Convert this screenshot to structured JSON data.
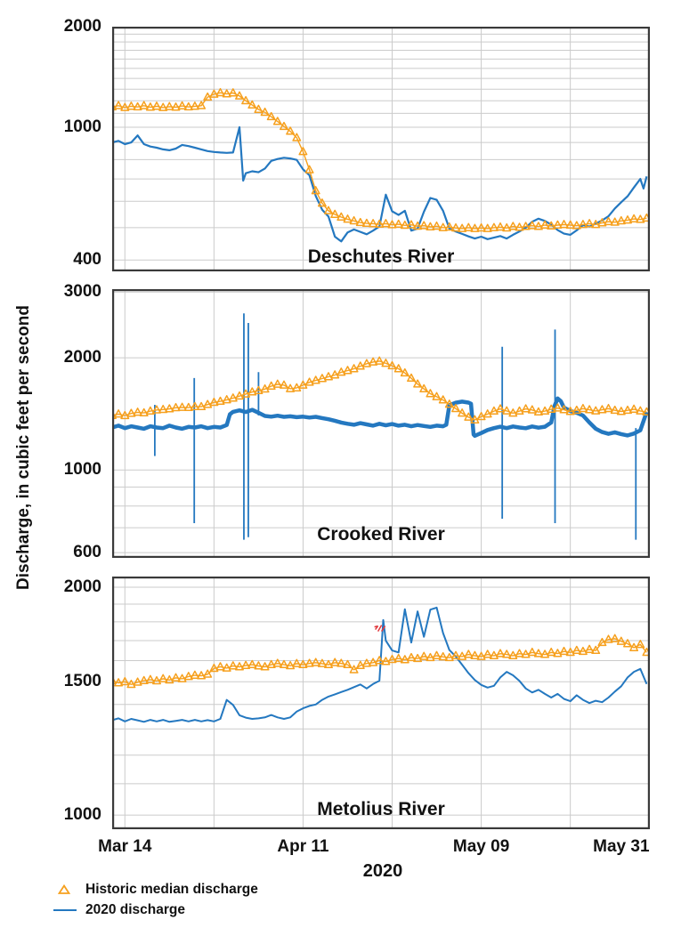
{
  "y_axis_title": "Discharge, in cubic feet per second",
  "x_axis_title": "2020",
  "colors": {
    "historic_median": "#F6A01E",
    "discharge_2020": "#2478C0",
    "frame": "#3A3A3A",
    "gridline": "#CBCBCB",
    "text": "#121212",
    "annotation_red": "#E0393E"
  },
  "legend": [
    {
      "label": "Historic median discharge",
      "marker": "triangle-icon",
      "color": "#F6A01E"
    },
    {
      "label": "2020 discharge",
      "marker": "line-icon",
      "color": "#2478C0"
    }
  ],
  "x_axis": {
    "year": "2020",
    "gridline_days": [
      2,
      16,
      30,
      44,
      58,
      72
    ],
    "xlim_days": [
      0,
      84.5
    ],
    "labels": [
      {
        "label": "Mar 14",
        "day": 2
      },
      {
        "label": "Apr 11",
        "day": 30
      },
      {
        "label": "May 09",
        "day": 58
      },
      {
        "label": "May 31",
        "day": 80
      }
    ]
  },
  "chart_data": [
    {
      "type": "line",
      "title": "Deschutes River",
      "ylabel": "Discharge, in cubic feet per second",
      "yscale": "log",
      "ylim": [
        370,
        2000
      ],
      "yticks": [
        [
          "2000",
          2000
        ],
        [
          "1000",
          1000
        ],
        [
          "400",
          400
        ]
      ],
      "y_gridlines": [
        400,
        500,
        600,
        700,
        800,
        900,
        1000,
        1100,
        1200,
        1300,
        1400,
        1500,
        1600,
        1700,
        1800,
        1900
      ],
      "series": [
        {
          "name": "Historic median discharge",
          "values": [
            1150,
            1160,
            1145,
            1155,
            1150,
            1160,
            1148,
            1155,
            1145,
            1152,
            1148,
            1158,
            1150,
            1155,
            1160,
            1230,
            1255,
            1268,
            1258,
            1266,
            1240,
            1200,
            1165,
            1130,
            1108,
            1075,
            1040,
            1005,
            972,
            930,
            845,
            745,
            645,
            592,
            562,
            548,
            538,
            530,
            524,
            518,
            515,
            514,
            512,
            514,
            510,
            512,
            508,
            510,
            505,
            507,
            503,
            505,
            500,
            502,
            499,
            497,
            500,
            497,
            499,
            497,
            500,
            502,
            499,
            504,
            501,
            504,
            507,
            504,
            509,
            506,
            509,
            511,
            509,
            507,
            511,
            514,
            511,
            517,
            521,
            519,
            524,
            527,
            531,
            529,
            534
          ]
        },
        {
          "name": "2020 discharge",
          "x": [
            0,
            1,
            2,
            3,
            4,
            5,
            6,
            7,
            8,
            9,
            10,
            11,
            12,
            13,
            14,
            15,
            16,
            17,
            18,
            19,
            20,
            20.6,
            21,
            22,
            23,
            24,
            25,
            26,
            27,
            28,
            29,
            30,
            31,
            32,
            33,
            34,
            35,
            36,
            37,
            38,
            39,
            40,
            41,
            42,
            43,
            44,
            45,
            46,
            47,
            48,
            49,
            50,
            51,
            52,
            53,
            54,
            55,
            56,
            57,
            58,
            59,
            60,
            61,
            62,
            63,
            64,
            65,
            66,
            67,
            68,
            69,
            70,
            71,
            72,
            73,
            74,
            75,
            76,
            77,
            78,
            79,
            80,
            81,
            82,
            83,
            83.5,
            84
          ],
          "values": [
            900,
            910,
            890,
            900,
            945,
            890,
            875,
            868,
            858,
            853,
            863,
            885,
            878,
            868,
            858,
            848,
            843,
            840,
            838,
            840,
            1000,
            692,
            728,
            738,
            733,
            752,
            793,
            803,
            810,
            806,
            798,
            748,
            718,
            622,
            566,
            540,
            470,
            455,
            484,
            494,
            486,
            478,
            490,
            504,
            628,
            560,
            546,
            562,
            490,
            497,
            558,
            614,
            606,
            562,
            497,
            487,
            479,
            471,
            464,
            470,
            462,
            467,
            472,
            464,
            476,
            487,
            500,
            521,
            532,
            524,
            511,
            492,
            480,
            476,
            491,
            509,
            504,
            514,
            526,
            541,
            571,
            596,
            621,
            660,
            700,
            655,
            712
          ]
        }
      ]
    },
    {
      "type": "line",
      "title": "Crooked River",
      "ylabel": "Discharge, in cubic feet per second",
      "yscale": "log",
      "ylim": [
        581,
        3055
      ],
      "yticks": [
        [
          "3000",
          3000
        ],
        [
          "2000",
          2000
        ],
        [
          "1000",
          1000
        ],
        [
          "600",
          600
        ]
      ],
      "y_gridlines": [
        600,
        700,
        800,
        900,
        1000,
        2000,
        3000
      ],
      "series": [
        {
          "name": "Historic median discharge",
          "values": [
            1400,
            1412,
            1398,
            1418,
            1428,
            1422,
            1438,
            1448,
            1452,
            1458,
            1468,
            1472,
            1470,
            1478,
            1478,
            1498,
            1518,
            1528,
            1542,
            1558,
            1578,
            1598,
            1618,
            1632,
            1648,
            1678,
            1698,
            1688,
            1652,
            1660,
            1688,
            1718,
            1738,
            1758,
            1778,
            1798,
            1828,
            1848,
            1868,
            1898,
            1928,
            1948,
            1958,
            1932,
            1902,
            1868,
            1820,
            1762,
            1700,
            1650,
            1602,
            1572,
            1540,
            1500,
            1460,
            1420,
            1385,
            1362,
            1390,
            1412,
            1438,
            1458,
            1440,
            1420,
            1438,
            1458,
            1448,
            1430,
            1438,
            1455,
            1465,
            1450,
            1435,
            1445,
            1460,
            1450,
            1440,
            1450,
            1460,
            1445,
            1435,
            1445,
            1455,
            1440,
            1430
          ]
        },
        {
          "name": "2020 discharge",
          "x": [
            0,
            1,
            2,
            3,
            4,
            5,
            6,
            7,
            8,
            9,
            10,
            11,
            12,
            13,
            14,
            15,
            16,
            17,
            18,
            18.5,
            19,
            20,
            21,
            22,
            23,
            24,
            25,
            26,
            27,
            28,
            29,
            30,
            31,
            32,
            33,
            34,
            35,
            36,
            37,
            38,
            39,
            40,
            41,
            42,
            43,
            44,
            45,
            46,
            47,
            48,
            49,
            50,
            51,
            52,
            52.5,
            53,
            54,
            55,
            56,
            56.4,
            56.8,
            57,
            58,
            59,
            60,
            61,
            62,
            63,
            64,
            65,
            66,
            67,
            68,
            69,
            69.5,
            70,
            70.5,
            71,
            72,
            73,
            74,
            75,
            76,
            77,
            78,
            79,
            80,
            81,
            82,
            83,
            84
          ],
          "values": [
            1300,
            1315,
            1295,
            1310,
            1300,
            1290,
            1310,
            1300,
            1295,
            1315,
            1300,
            1290,
            1305,
            1300,
            1310,
            1295,
            1305,
            1300,
            1320,
            1410,
            1432,
            1445,
            1430,
            1450,
            1424,
            1396,
            1390,
            1398,
            1388,
            1393,
            1385,
            1390,
            1382,
            1388,
            1378,
            1368,
            1355,
            1340,
            1330,
            1322,
            1335,
            1325,
            1315,
            1330,
            1318,
            1328,
            1315,
            1322,
            1310,
            1320,
            1312,
            1305,
            1315,
            1310,
            1322,
            1492,
            1515,
            1525,
            1516,
            1505,
            1245,
            1235,
            1256,
            1280,
            1295,
            1306,
            1295,
            1308,
            1300,
            1294,
            1308,
            1298,
            1306,
            1340,
            1482,
            1556,
            1530,
            1470,
            1440,
            1424,
            1400,
            1340,
            1290,
            1264,
            1250,
            1262,
            1248,
            1238,
            1252,
            1278,
            1430
          ]
        }
      ],
      "spikes": [
        {
          "day": 6.7,
          "low": 1090,
          "high": 1495
        },
        {
          "day": 12.9,
          "low": 720,
          "high": 1765
        },
        {
          "day": 20.7,
          "low": 650,
          "high": 2630
        },
        {
          "day": 21.4,
          "low": 660,
          "high": 2480
        },
        {
          "day": 23.0,
          "low": 1400,
          "high": 1830
        },
        {
          "day": 61.3,
          "low": 740,
          "high": 2140
        },
        {
          "day": 69.6,
          "low": 720,
          "high": 2380
        },
        {
          "day": 82.3,
          "low": 650,
          "high": 1295
        }
      ]
    },
    {
      "type": "line",
      "title": "Metolius River",
      "ylabel": "Discharge, in cubic feet per second",
      "yscale": "log",
      "ylim": [
        958,
        2066
      ],
      "yticks": [
        [
          "2000",
          2000
        ],
        [
          "1500",
          1500
        ],
        [
          "1000",
          1000
        ]
      ],
      "y_gridlines": [
        1000,
        1100,
        1200,
        1300,
        1400,
        1500,
        1600,
        1700,
        1800,
        1900,
        2000
      ],
      "series": [
        {
          "name": "Historic median discharge",
          "values": [
            1505,
            1495,
            1500,
            1488,
            1498,
            1505,
            1510,
            1504,
            1514,
            1508,
            1518,
            1514,
            1524,
            1530,
            1528,
            1535,
            1562,
            1570,
            1564,
            1574,
            1570,
            1576,
            1580,
            1574,
            1570,
            1580,
            1586,
            1580,
            1575,
            1585,
            1580,
            1586,
            1590,
            1585,
            1580,
            1590,
            1586,
            1580,
            1556,
            1576,
            1586,
            1590,
            1600,
            1595,
            1605,
            1610,
            1604,
            1614,
            1610,
            1620,
            1614,
            1624,
            1618,
            1614,
            1624,
            1620,
            1630,
            1624,
            1620,
            1630,
            1624,
            1634,
            1630,
            1624,
            1634,
            1630,
            1640,
            1634,
            1630,
            1640,
            1635,
            1645,
            1640,
            1650,
            1645,
            1655,
            1650,
            1690,
            1706,
            1710,
            1696,
            1684,
            1664,
            1680,
            1640
          ]
        },
        {
          "name": "2020 discharge",
          "x": [
            0,
            1,
            2,
            3,
            4,
            5,
            6,
            7,
            8,
            9,
            10,
            11,
            12,
            13,
            14,
            15,
            16,
            17,
            18,
            19,
            20,
            21,
            22,
            23,
            24,
            25,
            26,
            27,
            28,
            29,
            30,
            31,
            32,
            33,
            34,
            35,
            36,
            37,
            38,
            39,
            40,
            41,
            42,
            42.6,
            43,
            44,
            45,
            46,
            47,
            48,
            49,
            50,
            51,
            52,
            53,
            54,
            55,
            56,
            57,
            58,
            59,
            60,
            61,
            62,
            63,
            64,
            65,
            66,
            67,
            68,
            69,
            70,
            71,
            72,
            73,
            74,
            75,
            76,
            77,
            78,
            79,
            80,
            81,
            82,
            83,
            84
          ],
          "values": [
            1335,
            1342,
            1330,
            1340,
            1334,
            1328,
            1336,
            1330,
            1336,
            1328,
            1332,
            1336,
            1330,
            1336,
            1330,
            1335,
            1330,
            1340,
            1420,
            1398,
            1355,
            1345,
            1340,
            1342,
            1346,
            1356,
            1346,
            1340,
            1346,
            1370,
            1384,
            1394,
            1400,
            1420,
            1434,
            1444,
            1454,
            1464,
            1476,
            1488,
            1470,
            1490,
            1505,
            1810,
            1700,
            1650,
            1640,
            1870,
            1690,
            1858,
            1720,
            1868,
            1880,
            1740,
            1652,
            1620,
            1580,
            1540,
            1508,
            1486,
            1474,
            1482,
            1520,
            1546,
            1530,
            1504,
            1470,
            1452,
            1464,
            1446,
            1430,
            1446,
            1424,
            1414,
            1440,
            1420,
            1406,
            1416,
            1410,
            1430,
            1456,
            1480,
            1520,
            1546,
            1560,
            1490
          ]
        }
      ],
      "annotation": {
        "day": 42.2,
        "value": 1768,
        "name": "red-scribble-marker",
        "color": "#E0393E"
      }
    }
  ]
}
